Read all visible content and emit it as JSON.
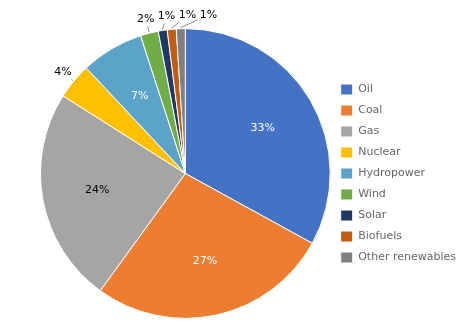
{
  "chart_data": {
    "type": "pie",
    "categories": [
      "Oil",
      "Coal",
      "Gas",
      "Nuclear",
      "Hydropower",
      "Wind",
      "Solar",
      "Biofuels",
      "Other renewables"
    ],
    "values": [
      33,
      27,
      24,
      4,
      7,
      2,
      1,
      1,
      1
    ],
    "value_labels": [
      "33%",
      "27%",
      "24%",
      "4%",
      "7%",
      "2%",
      "1%",
      "1%",
      "1%"
    ],
    "colors": [
      "#4472C4",
      "#ED7D31",
      "#A5A5A5",
      "#FFC000",
      "#5BA3C9",
      "#70AD47",
      "#1F3864",
      "#C55A11",
      "#808080"
    ],
    "legend": "right",
    "data_labels": true
  }
}
